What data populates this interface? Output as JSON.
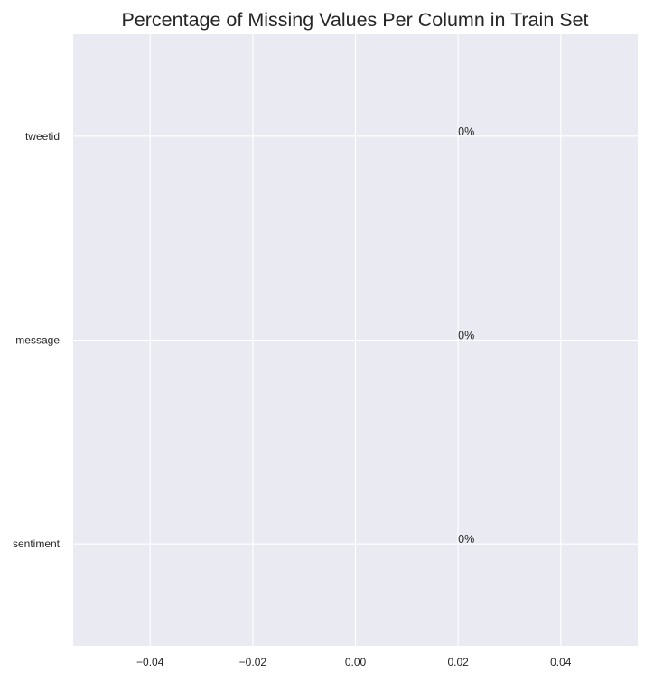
{
  "chart_data": {
    "type": "bar",
    "orientation": "horizontal",
    "title": "Percentage of Missing Values Per Column in Train Set",
    "xlabel": "",
    "ylabel": "",
    "categories": [
      "tweetid",
      "message",
      "sentiment"
    ],
    "values": [
      0,
      0,
      0
    ],
    "data_labels": [
      "0%",
      "0%",
      "0%"
    ],
    "x_ticks": [
      -0.04,
      -0.02,
      0.0,
      0.02,
      0.04
    ],
    "x_tick_labels": [
      "−0.04",
      "−0.02",
      "0.00",
      "0.02",
      "0.04"
    ],
    "xlim": [
      -0.055,
      0.055
    ],
    "grid": true,
    "style": {
      "plot_background": "#eaeaf2",
      "grid_color": "#ffffff",
      "text_color": "#262626"
    }
  }
}
